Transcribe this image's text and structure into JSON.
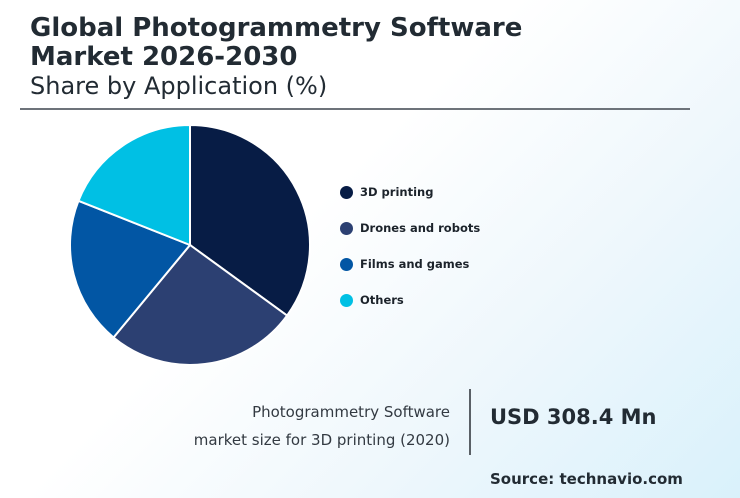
{
  "header": {
    "title": "Global Photogrammetry Software\nMarket 2026-2030",
    "subtitle": "Share by Application (%)"
  },
  "chart_data": {
    "type": "pie",
    "series": [
      {
        "name": "3D printing",
        "value": 35,
        "color": "#071c45"
      },
      {
        "name": "Drones and robots",
        "value": 26,
        "color": "#2c4072"
      },
      {
        "name": "Films and games",
        "value": 20,
        "color": "#0256a4"
      },
      {
        "name": "Others",
        "value": 19,
        "color": "#00c0e4"
      }
    ],
    "legend_position": "right"
  },
  "stat": {
    "description_line1": "Photogrammetry Software",
    "description_line2": "market size for 3D printing (2020)",
    "value": "USD 308.4 Mn"
  },
  "source": "Source: technavio.com"
}
